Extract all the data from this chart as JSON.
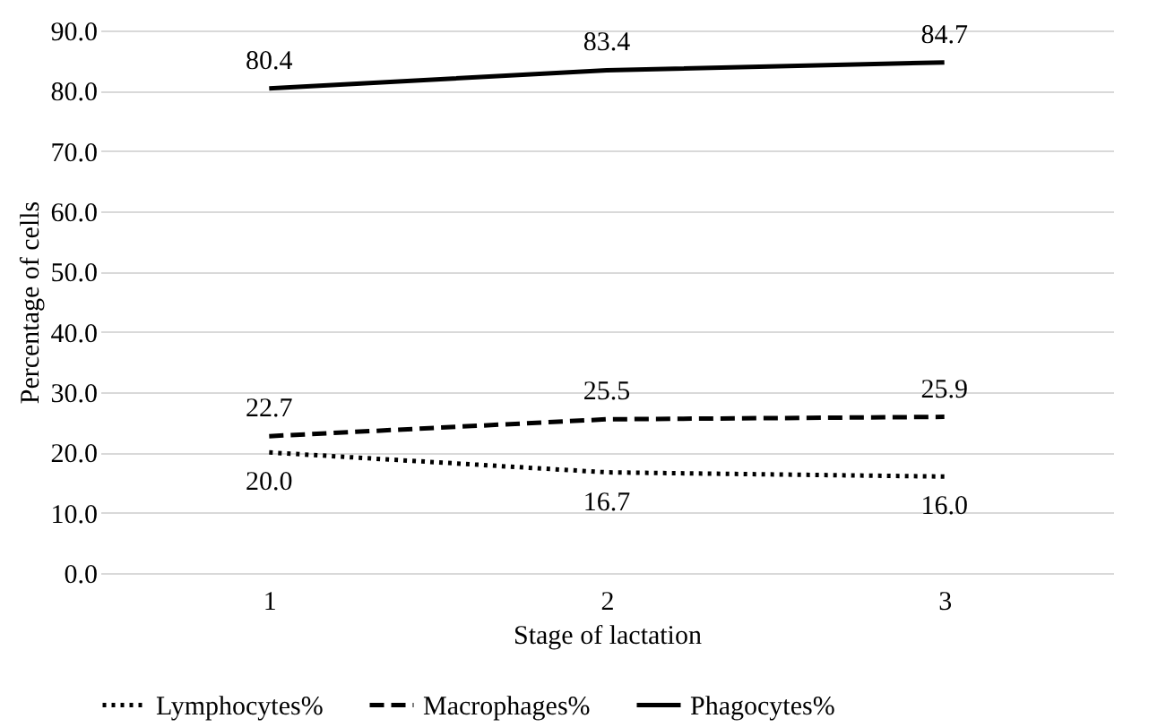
{
  "chart_data": {
    "type": "line",
    "xlabel": "Stage of lactation",
    "ylabel": "Percentage of cells",
    "categories": [
      "1",
      "2",
      "3"
    ],
    "series": [
      {
        "name": "Lymphocytes%",
        "color": "#000000",
        "line_style": "dotted",
        "values": [
          20.0,
          16.7,
          16.0
        ],
        "value_labels": [
          "20.0",
          "16.7",
          "16.0"
        ]
      },
      {
        "name": "Macrophages%",
        "color": "#000000",
        "line_style": "dashed",
        "values": [
          22.7,
          25.5,
          25.9
        ],
        "value_labels": [
          "22.7",
          "25.5",
          "25.9"
        ]
      },
      {
        "name": "Phagocytes%",
        "color": "#000000",
        "line_style": "solid",
        "values": [
          80.4,
          83.4,
          84.7
        ],
        "value_labels": [
          "80.4",
          "83.4",
          "84.7"
        ]
      }
    ],
    "ylim": [
      0,
      90
    ],
    "yticks": [
      {
        "value": 0,
        "label": "0.0"
      },
      {
        "value": 10,
        "label": "10.0"
      },
      {
        "value": 20,
        "label": "20.0"
      },
      {
        "value": 30,
        "label": "30.0"
      },
      {
        "value": 40,
        "label": "40.0"
      },
      {
        "value": 50,
        "label": "50.0"
      },
      {
        "value": 60,
        "label": "60.0"
      },
      {
        "value": 70,
        "label": "70.0"
      },
      {
        "value": 80,
        "label": "80.0"
      },
      {
        "value": 90,
        "label": "90.0"
      }
    ],
    "grid": "y",
    "legend": "bottom",
    "marker": "none"
  }
}
